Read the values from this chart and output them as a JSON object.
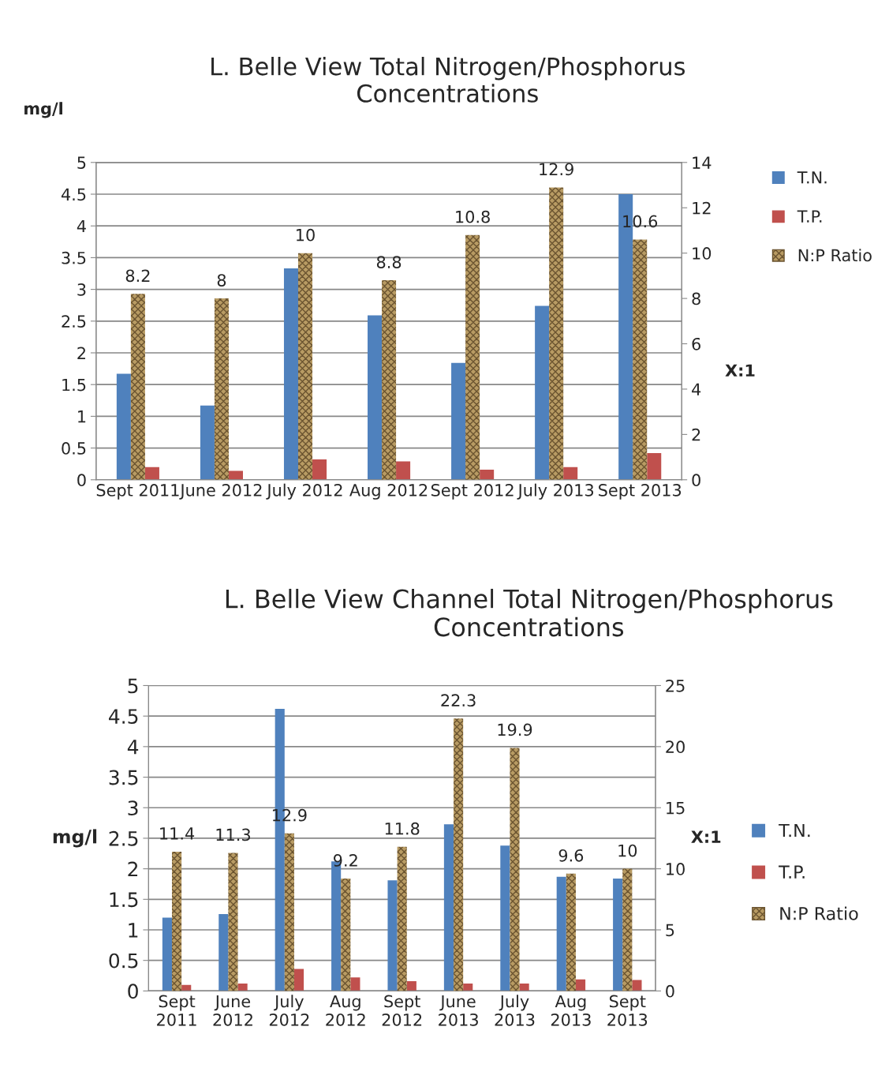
{
  "chart_data": [
    {
      "type": "bar",
      "title": "L. Belle View Total Nitrogen/Phosphorus\nConcentrations",
      "ylabel": "mg/l",
      "y2label": "X:1",
      "categories": [
        "Sept 2011",
        "June 2012",
        "July 2012",
        "Aug 2012",
        "Sept 2012",
        "July 2013",
        "Sept 2013"
      ],
      "series": [
        {
          "name": "T.N.",
          "color": "#4f81bd",
          "values": [
            1.67,
            1.17,
            3.33,
            2.59,
            1.84,
            2.74,
            4.5
          ]
        },
        {
          "name": "T.P.",
          "color": "#c0504d",
          "values": [
            0.2,
            0.14,
            0.32,
            0.29,
            0.16,
            0.2,
            0.42
          ]
        },
        {
          "name": "N:P Ratio",
          "color": "#b89b63",
          "axis": "y2",
          "values": [
            8.2,
            8,
            10,
            8.8,
            10.8,
            12.9,
            10.6
          ],
          "data_labels": true
        }
      ],
      "ylim": [
        0,
        5
      ],
      "yticks": [
        0,
        0.5,
        1,
        1.5,
        2,
        2.5,
        3,
        3.5,
        4,
        4.5,
        5
      ],
      "y2lim": [
        0,
        14
      ],
      "y2ticks": [
        0,
        2,
        4,
        6,
        8,
        10,
        12,
        14
      ],
      "grid": "y",
      "legend": "right"
    },
    {
      "type": "bar",
      "title": "L. Belle View Channel Total Nitrogen/Phosphorus\nConcentrations",
      "ylabel": "mg/l",
      "y2label": "X:1",
      "categories": [
        "Sept\n2011",
        "June\n2012",
        "July\n2012",
        "Aug\n2012",
        "Sept\n2012",
        "June\n2013",
        "July\n2013",
        "Aug\n2013",
        "Sept\n2013"
      ],
      "series": [
        {
          "name": "T.N.",
          "color": "#4f81bd",
          "values": [
            1.2,
            1.26,
            4.62,
            2.12,
            1.81,
            2.73,
            2.38,
            1.87,
            1.84
          ]
        },
        {
          "name": "T.P.",
          "color": "#c0504d",
          "values": [
            0.1,
            0.12,
            0.36,
            0.22,
            0.16,
            0.12,
            0.12,
            0.19,
            0.18
          ]
        },
        {
          "name": "N:P Ratio",
          "color": "#b89b63",
          "axis": "y2",
          "values": [
            11.4,
            11.3,
            12.9,
            9.2,
            11.8,
            22.3,
            19.9,
            9.6,
            10
          ],
          "data_labels": true
        }
      ],
      "ylim": [
        0,
        5
      ],
      "yticks": [
        0,
        0.5,
        1,
        1.5,
        2,
        2.5,
        3,
        3.5,
        4,
        4.5,
        5
      ],
      "y2lim": [
        0,
        25
      ],
      "y2ticks": [
        0,
        5,
        10,
        15,
        20,
        25
      ],
      "grid": "y",
      "legend": "right"
    }
  ]
}
